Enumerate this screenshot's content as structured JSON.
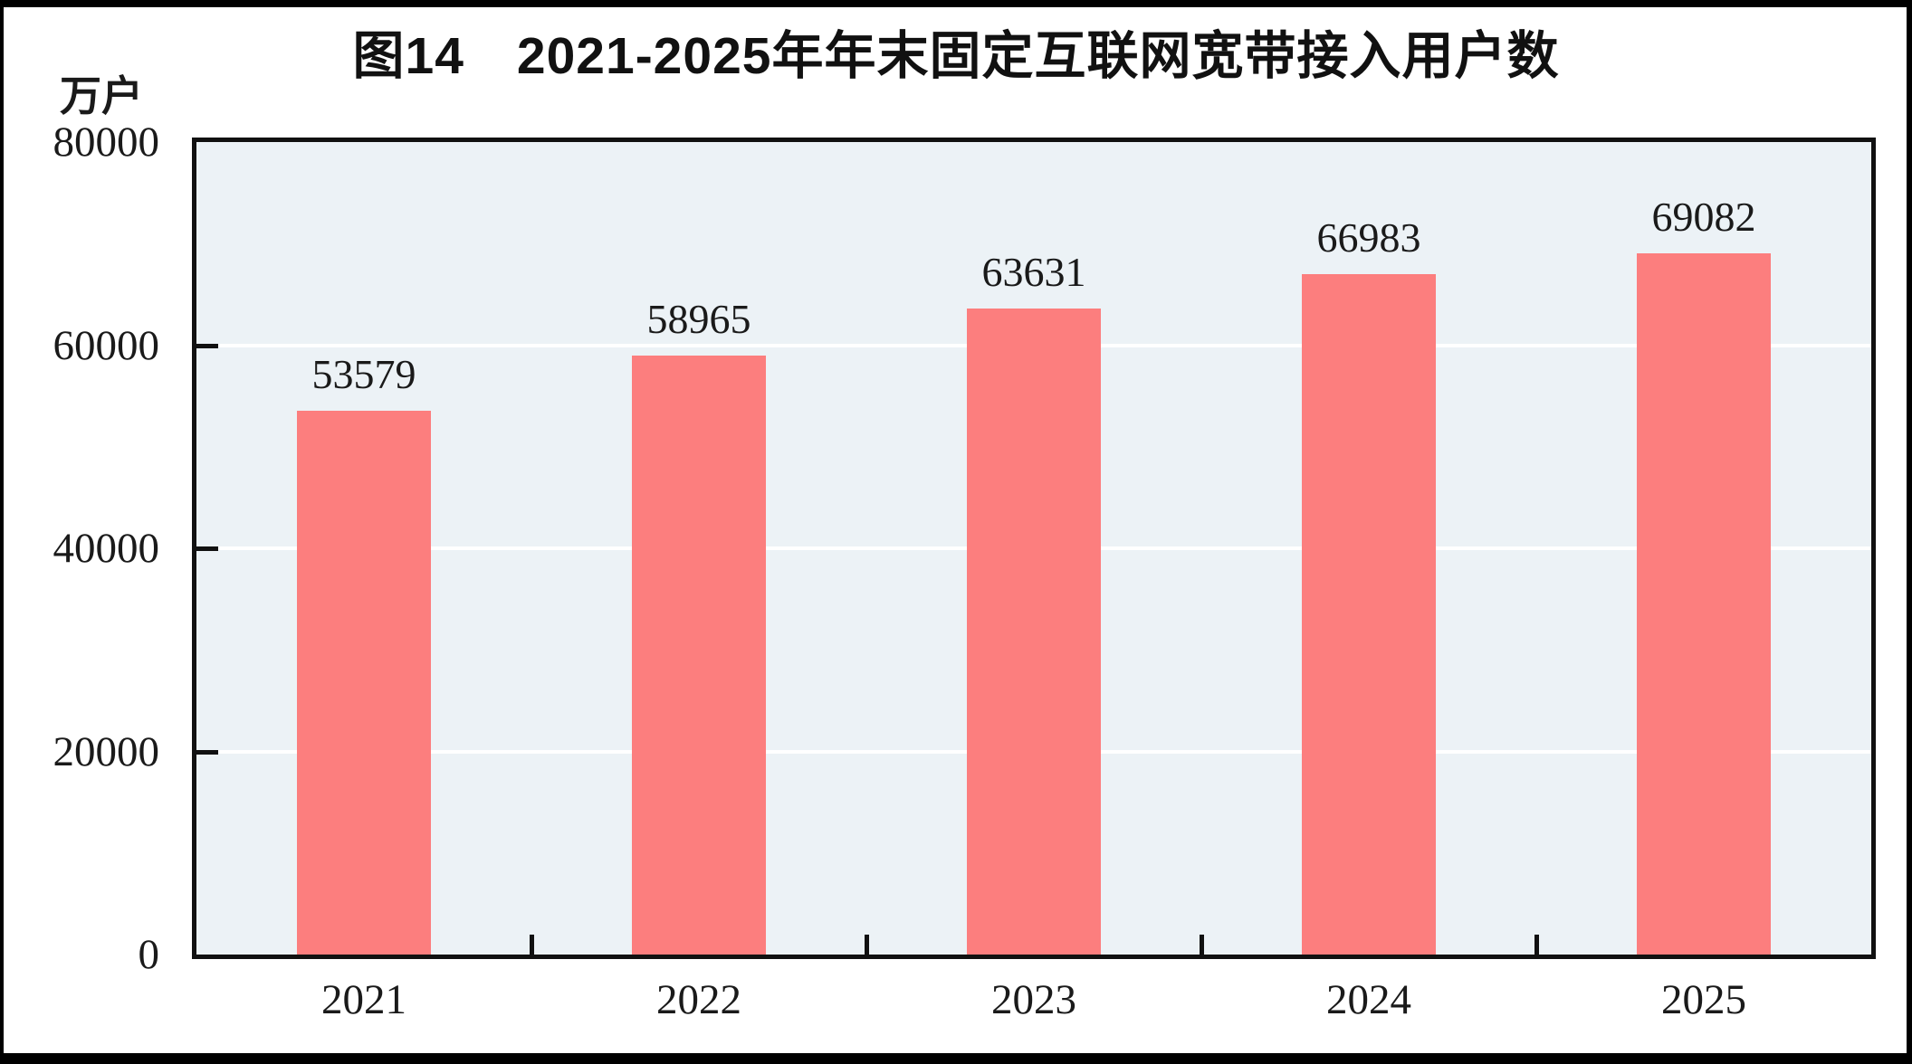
{
  "figure": {
    "title": "图14　2021-2025年年末固定互联网宽带接入用户数",
    "unit_label": "万户"
  },
  "chart_data": {
    "type": "bar",
    "title": "图14　2021-2025年年末固定互联网宽带接入用户数",
    "unit_label": "万户",
    "categories": [
      "2021",
      "2022",
      "2023",
      "2024",
      "2025"
    ],
    "values": [
      53579,
      58965,
      63631,
      66983,
      69082
    ],
    "data_labels": [
      "53579",
      "58965",
      "63631",
      "66983",
      "69082"
    ],
    "ylim": [
      0,
      80000
    ],
    "yticks": [
      0,
      20000,
      40000,
      60000,
      80000
    ],
    "ytick_labels": [
      "0",
      "20000",
      "40000",
      "60000",
      "80000"
    ],
    "xlabel": "",
    "ylabel": "万户",
    "legend_position": "none",
    "grid": "horizontal",
    "colors": {
      "bar": "#FC7E7E",
      "plot_background": "#ECF2F6",
      "gridline": "#FFFFFF",
      "axis": "#111111",
      "text": "#1a1a1a"
    }
  }
}
